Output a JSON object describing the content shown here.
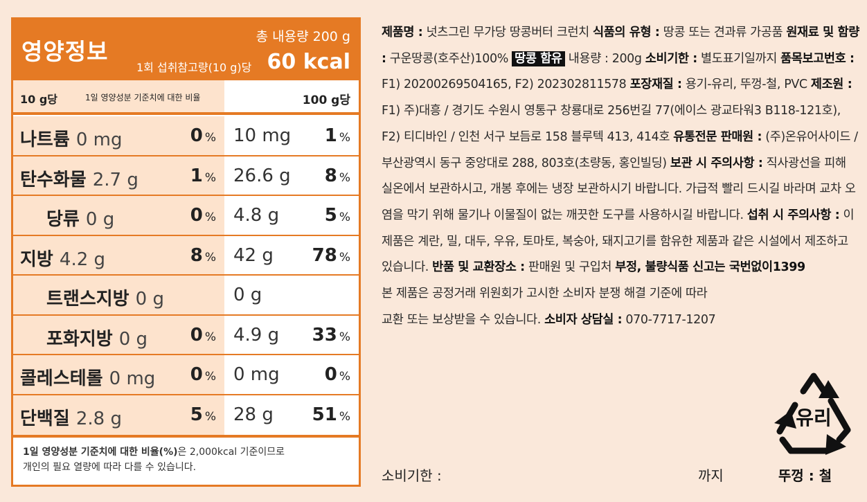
{
  "nutrition": {
    "title": "영양정보",
    "total": "총 내용량 200 g",
    "serving": "1회 섭취참고량(10 g)당",
    "kcal": "60 kcal",
    "col_10g": "10 g당",
    "col_ratio": "1일 영양성분 기준치에 대한 비율",
    "col_100g": "100 g당",
    "rows": [
      {
        "name": "나트륨",
        "amount": "0 mg",
        "pct": "0",
        "amount100": "10 mg",
        "pct100": "1"
      },
      {
        "name": "탄수화물",
        "amount": "2.7 g",
        "pct": "1",
        "amount100": "26.6 g",
        "pct100": "8"
      },
      {
        "name": "당류",
        "amount": "0 g",
        "pct": "0",
        "amount100": "4.8 g",
        "pct100": "5"
      },
      {
        "name": "지방",
        "amount": "4.2 g",
        "pct": "8",
        "amount100": "42 g",
        "pct100": "78"
      },
      {
        "name": "트랜스지방",
        "amount": "0 g",
        "pct": "",
        "amount100": "0 g",
        "pct100": ""
      },
      {
        "name": "포화지방",
        "amount": "0 g",
        "pct": "0",
        "amount100": "4.9 g",
        "pct100": "33"
      },
      {
        "name": "콜레스테롤",
        "amount": "0 mg",
        "pct": "0",
        "amount100": "0 mg",
        "pct100": "0"
      },
      {
        "name": "단백질",
        "amount": "2.8 g",
        "pct": "5",
        "amount100": "28 g",
        "pct100": "51"
      }
    ],
    "pct_unit": "%",
    "foot_bold": "1일 영양성분 기준치에 대한 비율(%)",
    "foot_text1": "은 2,000kcal 기준이므로",
    "foot_text2": "개인의 필요 열량에 따라 다를 수 있습니다."
  },
  "info": {
    "l_product": "제품명 :",
    "v_product": " 넛츠그린 무가당 땅콩버터 크런치 ",
    "l_type": "식품의 유형 :",
    "v_type": " 땅콩 또는 견과류 가공품 ",
    "l_ingredients": "원재료 및 함량 :",
    "v_ingredients": " 구운땅콩(호주산)100% ",
    "allergen": "땅콩 함유",
    "v_volume": " 내용량 : 200g ",
    "l_expiry": "소비기한 :",
    "v_expiry": " 별도표기일까지 ",
    "l_report": "품목보고번호 :",
    "v_report": " F1) 20200269504165, F2) 202302811578 ",
    "l_pack": "포장재질 :",
    "v_pack": " 용기-유리, 뚜껑-철, PVC ",
    "l_maker": "제조원 :",
    "v_maker": " F1) 주)대흥 / 경기도 수원시 영통구 창룡대로 256번길 77(에이스 광교타워3 B118-121호), F2) 티디바인 / 인천 서구 보듬로 158 블루텍 413, 414호 ",
    "l_seller": "유통전문 판매원 :",
    "v_seller": " (주)온유어사이드 / 부산광역시 동구 중앙대로 288, 803호(초량동, 홍인빌딩) ",
    "l_storage": "보관 시 주의사항 :",
    "v_storage": " 직사광선을 피해 실온에서 보관하시고, 개봉 후에는 냉장 보관하시기 바랍니다. 가급적 빨리 드시길 바라며 교차 오염을 막기 위해 물기나 이물질이 없는 깨끗한 도구를 사용하시길 바랍니다. ",
    "l_intake": "섭취 시 주의사항 :",
    "v_intake": " 이 제품은 계란, 밀, 대두, 우유, 토마토, 복숭아, 돼지고기를 함유한 제품과 같은 시설에서 제조하고 있습니다. ",
    "l_return": "반품 및 교환장소 :",
    "v_return": " 판매원 및 구입처 ",
    "l_report_bad": "부정, 불량식품 신고는 국번없이1399",
    "v_dispute1": "본 제품은 공정거래 위원회가 고시한 소비자 분쟁 해결 기준에 따라",
    "v_dispute2": "교환 또는 보상받을 수 있습니다. ",
    "l_consumer": "소비자 상담실 :",
    "v_consumer": " 070-7717-1207"
  },
  "expiry_label": "소비기한 :",
  "expiry_until": "까지",
  "recycle_text": "유리",
  "lid_text": "뚜껑 : 철"
}
